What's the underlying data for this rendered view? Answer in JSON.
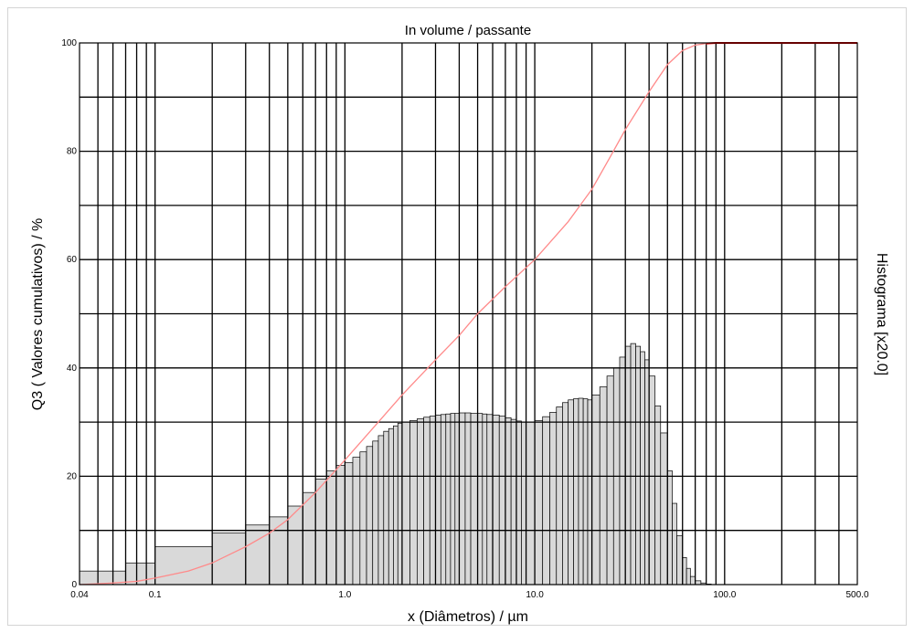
{
  "chart_data": {
    "type": "bar",
    "title": "In volume / passante",
    "xlabel": "x (Diâmetros) / µm",
    "ylabel": "Q3 ( Valores cumulativos) / %",
    "y2label": "Histograma [x20.0]",
    "x_scale": "log",
    "xlim": [
      0.04,
      500.0
    ],
    "ylim": [
      0,
      100
    ],
    "x_tick_labels": [
      "0.04",
      "0.1",
      "1.0",
      "10.0",
      "100.0",
      "500.0"
    ],
    "y_tick_labels": [
      "0",
      "20",
      "40",
      "60",
      "80",
      "100"
    ],
    "grid": true,
    "histogram": {
      "name": "Histograma",
      "edges": [
        0.04,
        0.07,
        0.1,
        0.2,
        0.3,
        0.4,
        0.5,
        0.6,
        0.7,
        0.8,
        0.9,
        1.0,
        1.1,
        1.2,
        1.3,
        1.4,
        1.5,
        1.6,
        1.7,
        1.8,
        1.9,
        2.0,
        2.2,
        2.4,
        2.6,
        2.8,
        3.0,
        3.2,
        3.4,
        3.6,
        3.8,
        4.0,
        4.3,
        4.6,
        5.0,
        5.3,
        5.6,
        6.0,
        6.5,
        7.0,
        7.5,
        8.0,
        8.5,
        9.0,
        10.0,
        11.0,
        12.0,
        13.0,
        14.0,
        15.0,
        16.0,
        17.0,
        18.0,
        19.0,
        20.0,
        22.0,
        24.0,
        26.0,
        28.0,
        30.0,
        32.0,
        34.0,
        36.0,
        38.0,
        40.0,
        43.0,
        46.0,
        50.0,
        53.0,
        56.0,
        60.0,
        63.0,
        66.0,
        70.0,
        75.0,
        80.0,
        85.0,
        90.0
      ],
      "values": [
        2.5,
        4.0,
        7.0,
        9.5,
        11.0,
        12.5,
        14.5,
        17.0,
        19.5,
        21.0,
        22.0,
        22.5,
        23.5,
        24.5,
        25.5,
        26.5,
        27.5,
        28.3,
        28.8,
        29.3,
        29.8,
        30.0,
        30.3,
        30.6,
        30.9,
        31.1,
        31.3,
        31.4,
        31.5,
        31.6,
        31.6,
        31.7,
        31.7,
        31.6,
        31.6,
        31.5,
        31.4,
        31.3,
        31.1,
        30.8,
        30.5,
        30.2,
        30.0,
        30.0,
        30.3,
        31.0,
        31.8,
        32.8,
        33.6,
        34.1,
        34.3,
        34.4,
        34.3,
        34.1,
        35.0,
        36.5,
        38.5,
        40.0,
        42.0,
        44.0,
        44.5,
        44.0,
        43.0,
        41.5,
        38.5,
        33.0,
        28.0,
        21.0,
        15.0,
        9.0,
        5.0,
        3.0,
        1.5,
        0.7,
        0.3,
        0.1,
        0.0
      ],
      "color": "#d9d9d9"
    },
    "cumulative": {
      "name": "Q3",
      "x": [
        0.04,
        0.06,
        0.08,
        0.1,
        0.15,
        0.2,
        0.3,
        0.4,
        0.5,
        0.7,
        1.0,
        1.5,
        2.0,
        3.0,
        4.0,
        5.0,
        7.0,
        10.0,
        15.0,
        20.0,
        25.0,
        30.0,
        40.0,
        50.0,
        60.0,
        70.0,
        80.0,
        90.0,
        100.0,
        500.0
      ],
      "y": [
        0,
        0.3,
        0.6,
        1.2,
        2.5,
        4.0,
        7.0,
        9.5,
        12.0,
        17.0,
        23.0,
        30.0,
        35.0,
        41.5,
        46.0,
        50.0,
        55.0,
        60.0,
        67.0,
        73.0,
        79.0,
        84.0,
        91.0,
        96.0,
        98.6,
        99.6,
        99.9,
        100,
        100,
        100
      ],
      "color": "#ff8a8a",
      "saturated_color": "#ff0000"
    }
  }
}
